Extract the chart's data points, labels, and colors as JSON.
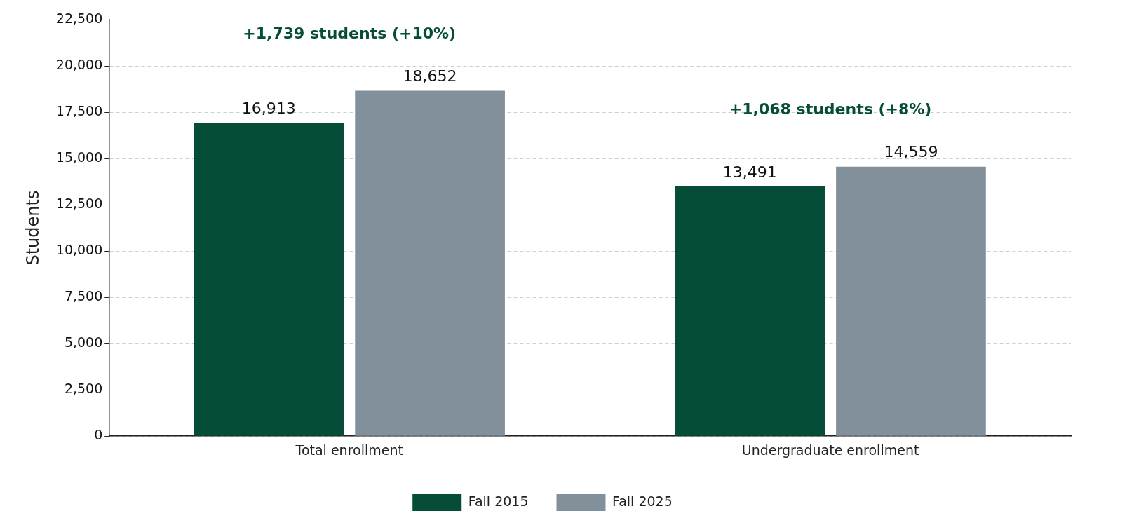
{
  "chart_data": {
    "type": "bar",
    "ylabel": "Students",
    "categories": [
      "Total enrollment",
      "Undergraduate enrollment"
    ],
    "series": [
      {
        "name": "Fall 2015",
        "color": "#054d38",
        "values": [
          16913,
          13491
        ],
        "value_labels": [
          "16,913",
          "13,491"
        ]
      },
      {
        "name": "Fall 2025",
        "color": "#82909b",
        "values": [
          18652,
          14559
        ],
        "value_labels": [
          "18,652",
          "14,559"
        ]
      }
    ],
    "ylim": [
      0,
      22500
    ],
    "yticks": [
      0,
      {
        "value": 2500,
        "label": "2,500"
      },
      {
        "value": 5000,
        "label": "5,000"
      },
      {
        "value": 7500,
        "label": "7,500"
      },
      {
        "value": 10000,
        "label": "10,000"
      },
      {
        "value": 12500,
        "label": "12,500"
      },
      {
        "value": 15000,
        "label": "15,000"
      },
      {
        "value": 17500,
        "label": "17,500"
      },
      {
        "value": 20000,
        "label": "20,000"
      },
      {
        "value": 22500,
        "label": "22,500"
      }
    ],
    "grid": "y",
    "legend": "bottom",
    "annotations": [
      "+1,739 students (+10%)",
      "+1,068 students (+8%)"
    ]
  }
}
